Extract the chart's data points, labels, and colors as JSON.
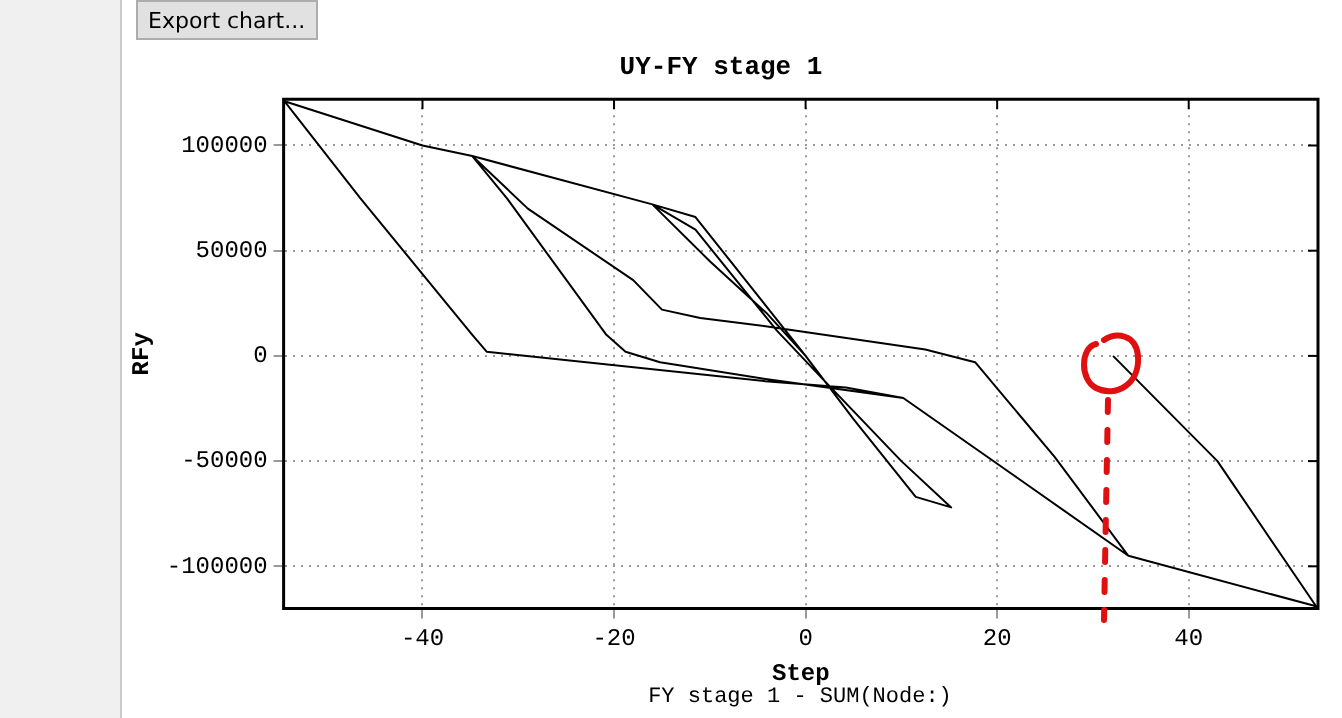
{
  "chart_data": {
    "type": "line",
    "title": "UY-FY stage 1",
    "xlabel": "Step",
    "ylabel": "RFy",
    "annotations": [
      "Export chart...",
      "FY stage 1 - SUM(Node:)"
    ],
    "x": [
      0,
      -11.5,
      -16,
      -10,
      -4,
      0,
      5,
      11.5,
      15.2,
      10,
      2,
      -3,
      -11.5,
      -16,
      -34.8,
      -29,
      -18,
      -15,
      -11,
      -4,
      12.5,
      17.7,
      26,
      33.7,
      21.5,
      10.2,
      -4.2,
      -15.2,
      -18.8,
      -20.8,
      -31.2,
      -34.8,
      -40,
      -54.4,
      -46.5,
      -34.8,
      -33.3,
      -4.2,
      4.2,
      10.2,
      21.5,
      33.7,
      53.3,
      43,
      32.1
    ],
    "series": [
      {
        "color": "#000000",
        "values": [
          0,
          66000,
          72000,
          45000,
          20000,
          0,
          -30000,
          -67000,
          -72000,
          -50000,
          -12000,
          12000,
          60000,
          72000,
          95000,
          70000,
          36000,
          22000,
          18000,
          14000,
          3000,
          -3000,
          -48000,
          -95000,
          -56000,
          -20000,
          -11000,
          -3000,
          2000,
          10000,
          75000,
          95000,
          100000,
          121000,
          75000,
          10000,
          2000,
          -12000,
          -15000,
          -20000,
          -56000,
          -95000,
          -119000,
          -50000,
          0
        ]
      }
    ],
    "xlim": [
      -54.5,
      53.5
    ],
    "xticks": [
      -40,
      -20,
      0,
      20,
      40
    ],
    "ylim": [
      -120000,
      122000
    ],
    "yticks": [
      -100000,
      -50000,
      0,
      50000,
      100000
    ],
    "grid": true,
    "legend": false,
    "marker": "none",
    "line_style": "solid"
  }
}
